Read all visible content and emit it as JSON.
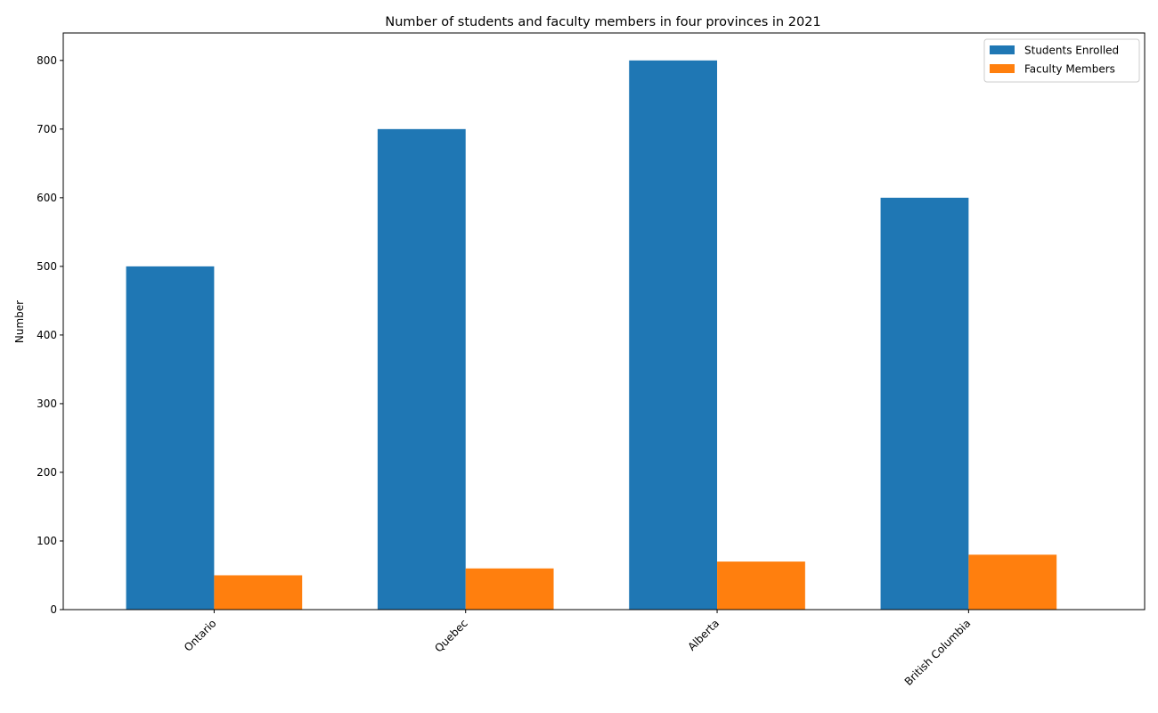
{
  "chart_data": {
    "type": "bar",
    "title": "Number of students and faculty members in four provinces in 2021",
    "xlabel": "",
    "ylabel": "Number",
    "categories": [
      "Ontario",
      "Quebec",
      "Alberta",
      "British Columbia"
    ],
    "series": [
      {
        "name": "Students Enrolled",
        "values": [
          500,
          700,
          800,
          600
        ],
        "color": "#1f77b4"
      },
      {
        "name": "Faculty Members",
        "values": [
          50,
          60,
          70,
          80
        ],
        "color": "#ff7f0e"
      }
    ],
    "ylim": [
      0,
      840
    ],
    "yticks": [
      0,
      100,
      200,
      300,
      400,
      500,
      600,
      700,
      800
    ],
    "grid": false,
    "legend_position": "top-right"
  }
}
